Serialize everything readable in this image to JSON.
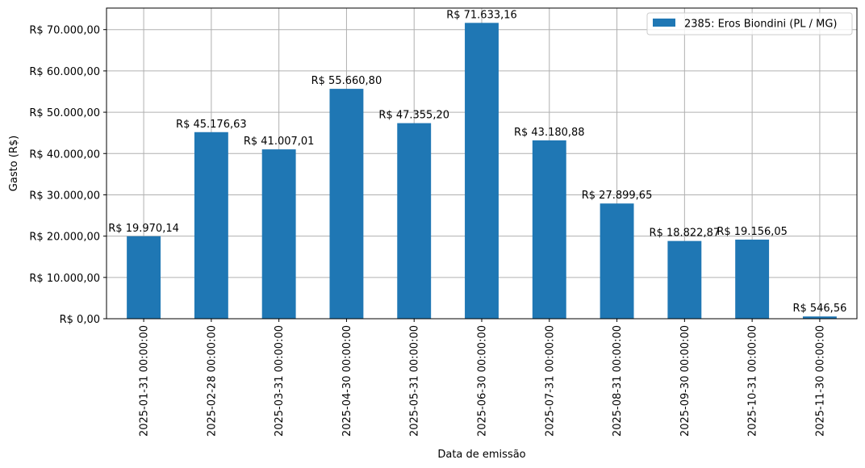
{
  "chart_data": {
    "type": "bar",
    "categories": [
      "2025-01-31 00:00:00",
      "2025-02-28 00:00:00",
      "2025-03-31 00:00:00",
      "2025-04-30 00:00:00",
      "2025-05-31 00:00:00",
      "2025-06-30 00:00:00",
      "2025-07-31 00:00:00",
      "2025-08-31 00:00:00",
      "2025-09-30 00:00:00",
      "2025-10-31 00:00:00",
      "2025-11-30 00:00:00"
    ],
    "series": [
      {
        "name": "2385: Eros Biondini (PL / MG)",
        "values": [
          19970.14,
          45176.63,
          41007.01,
          55660.8,
          47355.2,
          71633.16,
          43180.88,
          27899.65,
          18822.87,
          19156.05,
          546.56
        ],
        "color": "#1f77b4"
      }
    ],
    "data_labels": [
      "R$ 19.970,14",
      "R$ 45.176,63",
      "R$ 41.007,01",
      "R$ 55.660,80",
      "R$ 47.355,20",
      "R$ 71.633,16",
      "R$ 43.180,88",
      "R$ 27.899,65",
      "R$ 18.822,87",
      "R$ 19.156,05",
      "R$ 546,56"
    ],
    "title": "",
    "xlabel": "Data de emissão",
    "ylabel": "Gasto (R$)",
    "ylim": [
      0,
      75216.82
    ],
    "yticks": [
      0,
      10000,
      20000,
      30000,
      40000,
      50000,
      60000,
      70000
    ],
    "ytick_labels": [
      "R$ 0,00",
      "R$ 10.000,00",
      "R$ 20.000,00",
      "R$ 30.000,00",
      "R$ 40.000,00",
      "R$ 50.000,00",
      "R$ 60.000,00",
      "R$ 70.000,00"
    ],
    "grid": true,
    "legend_position": "top-right"
  }
}
